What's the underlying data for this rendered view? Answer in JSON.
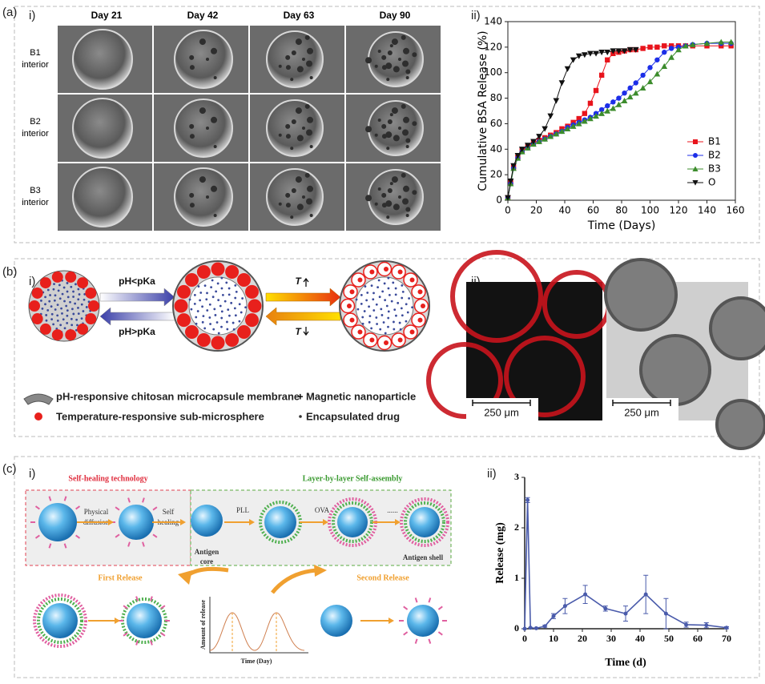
{
  "figure": {
    "a": {
      "label": "(a)",
      "i": "i)",
      "ii": "ii)",
      "columns": [
        "Day 21",
        "Day 42",
        "Day 63",
        "Day 90"
      ],
      "rows": [
        [
          "B1",
          "interior"
        ],
        [
          "B2",
          "interior"
        ],
        [
          "B3",
          "interior"
        ]
      ]
    },
    "b": {
      "label": "(b)",
      "i": "i)",
      "ii": "ii)",
      "acid": "pH<pKa",
      "base": "pH>pKa",
      "heat": "T",
      "cool": "T",
      "legend": [
        "pH-responsive chitosan microcapsule membrane",
        "Magnetic nanoparticle",
        "Temperature-responsive sub-microsphere",
        "Encapsulated drug"
      ],
      "scale_bars": [
        "250 μm",
        "250 μm"
      ]
    },
    "c": {
      "label": "(c)",
      "i": "i)",
      "ii": "ii)",
      "left_title": "Self-healing technology",
      "right_title": "Layer-by-layer Self-assembly",
      "step1": [
        "Physical",
        "diffusion"
      ],
      "step2": [
        "Self",
        "healing"
      ],
      "core": [
        "Antigen",
        "core"
      ],
      "layer1": "PLL",
      "layer2": "OVA",
      "more": "......",
      "shell": "Antigen shell",
      "first": "First Release",
      "second": "Second Release",
      "curve_y": "Amount of release",
      "curve_x": "Time (Day)"
    }
  },
  "chart_data": [
    {
      "type": "line",
      "xlabel": "Time (Days)",
      "ylabel": "Cumulative BSA Release (%)",
      "xlim": [
        0,
        160
      ],
      "ylim": [
        0,
        140
      ],
      "xticks": [
        0,
        20,
        40,
        60,
        80,
        100,
        120,
        140,
        160
      ],
      "yticks": [
        0,
        20,
        40,
        60,
        80,
        100,
        120,
        140
      ],
      "legend": "right",
      "x": [
        0,
        2,
        4,
        7,
        10,
        14,
        18,
        22,
        26,
        30,
        34,
        38,
        42,
        46,
        50,
        54,
        58,
        62,
        66,
        70,
        74,
        78,
        82,
        86,
        90,
        95,
        100,
        105,
        110,
        115,
        120,
        125,
        130,
        140,
        150,
        157
      ],
      "series": [
        {
          "name": "B1",
          "color": "#e8141c",
          "marker": "square",
          "values": [
            2,
            14,
            26,
            34,
            39,
            42,
            45,
            47,
            49,
            51,
            53,
            56,
            58,
            61,
            64,
            68,
            76,
            86,
            98,
            110,
            115,
            116,
            117,
            118,
            118,
            119,
            120,
            120,
            121,
            121,
            121,
            121,
            121,
            121,
            121,
            121
          ]
        },
        {
          "name": "B2",
          "color": "#1c2ee8",
          "marker": "circle",
          "values": [
            2,
            13,
            25,
            33,
            38,
            41,
            44,
            46,
            48,
            50,
            52,
            54,
            57,
            59,
            61,
            63,
            65,
            68,
            71,
            74,
            77,
            80,
            84,
            88,
            92,
            98,
            104,
            110,
            116,
            119,
            120,
            121,
            122,
            123,
            123,
            123
          ]
        },
        {
          "name": "B3",
          "color": "#3c8c2c",
          "marker": "triangle",
          "values": [
            2,
            13,
            25,
            33,
            38,
            41,
            44,
            46,
            48,
            50,
            52,
            54,
            56,
            58,
            60,
            62,
            64,
            66,
            68,
            70,
            72,
            75,
            78,
            81,
            84,
            88,
            93,
            99,
            105,
            112,
            118,
            121,
            122,
            123,
            124,
            124
          ]
        },
        {
          "name": "O",
          "color": "#111111",
          "marker": "invtriangle",
          "values": [
            2,
            15,
            27,
            35,
            40,
            43,
            46,
            50,
            56,
            66,
            78,
            92,
            103,
            110,
            113,
            114,
            115,
            115,
            116,
            116,
            117,
            117,
            117,
            118,
            118,
            null,
            null,
            null,
            null,
            null,
            null,
            null,
            null,
            null,
            null,
            null
          ]
        }
      ]
    },
    {
      "type": "line",
      "xlabel": "Time (d)",
      "ylabel": "Release (mg)",
      "xlim": [
        0,
        70
      ],
      "ylim": [
        0,
        3
      ],
      "xticks": [
        0,
        10,
        20,
        30,
        40,
        50,
        60,
        70
      ],
      "yticks": [
        0,
        1,
        2,
        3
      ],
      "x": [
        0,
        1,
        2,
        4,
        7,
        10,
        14,
        21,
        28,
        35,
        42,
        49,
        56,
        63,
        70
      ],
      "values": [
        0,
        2.55,
        0.02,
        0.01,
        0.05,
        0.25,
        0.45,
        0.68,
        0.4,
        0.3,
        0.68,
        0.3,
        0.08,
        0.07,
        0.02
      ],
      "errors": [
        0,
        0.05,
        0,
        0,
        0.02,
        0.05,
        0.15,
        0.18,
        0.05,
        0.15,
        0.38,
        0.3,
        0.05,
        0.05,
        0.02
      ],
      "color": "#4a5bab"
    }
  ]
}
